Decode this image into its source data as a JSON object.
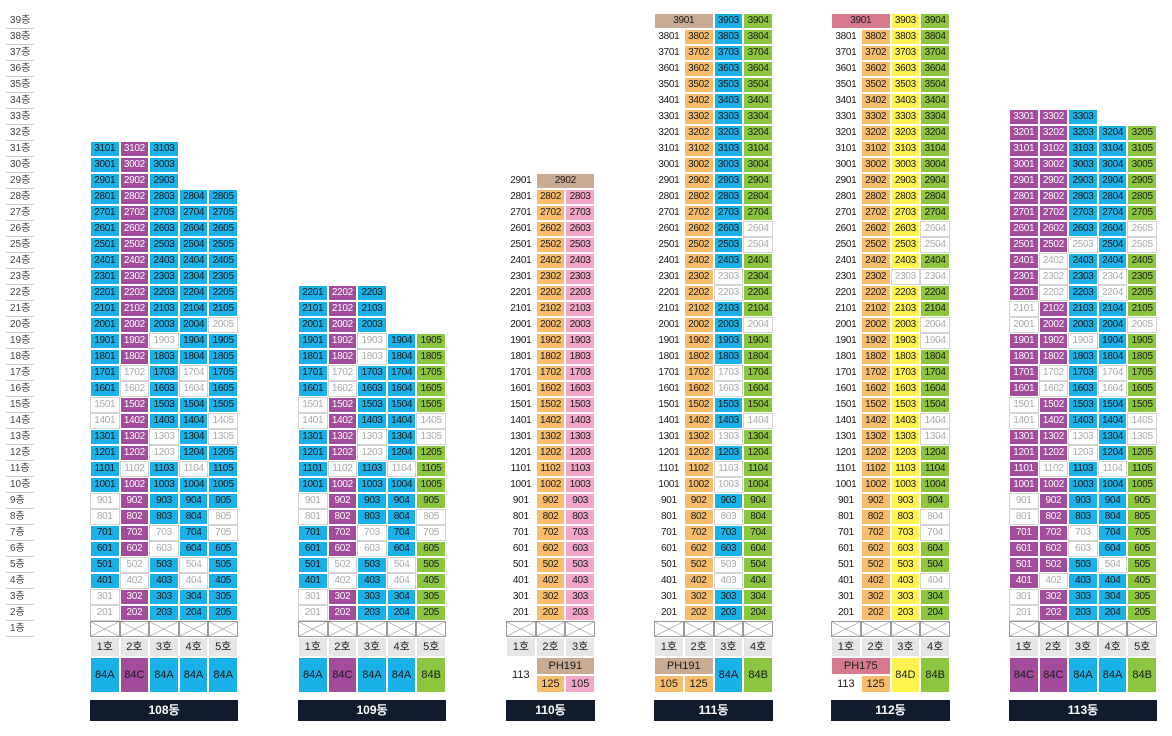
{
  "floor_labels": [
    "1층",
    "2층",
    "3층",
    "4층",
    "5층",
    "6층",
    "7층",
    "8층",
    "9층",
    "10층",
    "11층",
    "12층",
    "13층",
    "14층",
    "15층",
    "16층",
    "17층",
    "18층",
    "19층",
    "20층",
    "21층",
    "22층",
    "23층",
    "24층",
    "25층",
    "26층",
    "27층",
    "28층",
    "29층",
    "30층",
    "31층",
    "32층",
    "33층",
    "34층",
    "35층",
    "36층",
    "37층",
    "38층",
    "39층"
  ],
  "colors": {
    "blue": "#19b1e8",
    "purple": "#a24c9b",
    "pink": "#f2a6c8",
    "orange": "#f7bd6c",
    "green": "#8cc63f",
    "yellow": "#fff44f",
    "lavender": "#b9a5d3",
    "tan": "#c9ab93",
    "rose": "#d77a8f",
    "empty": "#ffffff",
    "name_bar": "#101c2c"
  },
  "buildings": [
    {
      "name": "108동",
      "line_labels": [
        "1호",
        "2호",
        "3호",
        "4호",
        "5호"
      ],
      "types": [
        {
          "label": "84A",
          "color": "blue"
        },
        {
          "label": "84C",
          "color": "purple"
        },
        {
          "label": "84A",
          "color": "blue"
        },
        {
          "label": "84A",
          "color": "blue"
        },
        {
          "label": "84A",
          "color": "blue"
        }
      ],
      "line_colors": [
        "blue",
        "purple",
        "blue",
        "blue",
        "blue"
      ],
      "line_tops": [
        31,
        31,
        31,
        28,
        28
      ],
      "empty_units": [
        "301",
        "201",
        "502",
        "504",
        "402",
        "404",
        "603",
        "703",
        "705",
        "801",
        "805",
        "901",
        "1102",
        "1104",
        "1203",
        "1303",
        "1305",
        "1401",
        "1405",
        "1501",
        "1602",
        "1604",
        "1702",
        "1704",
        "1903",
        "2005"
      ],
      "shared": []
    },
    {
      "name": "109동",
      "line_labels": [
        "1호",
        "2호",
        "3호",
        "4호",
        "5호"
      ],
      "types": [
        {
          "label": "84A",
          "color": "blue"
        },
        {
          "label": "84C",
          "color": "purple"
        },
        {
          "label": "84A",
          "color": "blue"
        },
        {
          "label": "84A",
          "color": "blue"
        },
        {
          "label": "84B",
          "color": "green"
        }
      ],
      "line_colors": [
        "blue",
        "purple",
        "blue",
        "blue",
        "green"
      ],
      "line_tops": [
        22,
        22,
        22,
        19,
        19
      ],
      "empty_units": [
        "201",
        "301",
        "402",
        "404",
        "502",
        "504",
        "603",
        "703",
        "705",
        "801",
        "805",
        "901",
        "1102",
        "1104",
        "1203",
        "1303",
        "1305",
        "1401",
        "1405",
        "1501",
        "1602",
        "1702",
        "1803",
        "1903"
      ],
      "shared": []
    },
    {
      "name": "110동",
      "line_labels": [
        "1호",
        "2호",
        "3호"
      ],
      "types": [
        {
          "label": "113",
          "color": "lavender",
          "rows": 2
        },
        {
          "label": "PH191",
          "color": "tan",
          "span": 2
        },
        {
          "label": "125",
          "color": "orange"
        },
        {
          "label": "105",
          "color": "pink"
        }
      ],
      "line_colors": [
        "lavender",
        "orange",
        "pink"
      ],
      "line_tops": [
        29,
        28,
        28
      ],
      "empty_units": [],
      "shared": [
        {
          "label": "2902",
          "floor": 29,
          "start": 1,
          "span": 2,
          "color": "tan"
        }
      ]
    },
    {
      "name": "111동",
      "line_labels": [
        "1호",
        "2호",
        "3호",
        "4호"
      ],
      "types": [
        {
          "label": "PH191",
          "color": "tan",
          "span": 2
        },
        {
          "label": "84A",
          "color": "blue",
          "rows": 2
        },
        {
          "label": "84B",
          "color": "green",
          "rows": 2
        },
        {
          "label": "105",
          "color": "orange"
        },
        {
          "label": "125",
          "color": "orange"
        }
      ],
      "line_colors": [
        "lavender",
        "orange",
        "blue",
        "green"
      ],
      "line_tops": [
        38,
        38,
        39,
        39
      ],
      "empty_units": [
        "403",
        "503",
        "803",
        "1003",
        "1103",
        "1303",
        "1404",
        "1603",
        "1703",
        "2004",
        "2203",
        "2303",
        "2504",
        "2604"
      ],
      "shared": [
        {
          "label": "3901",
          "floor": 39,
          "start": 0,
          "span": 2,
          "color": "tan"
        }
      ]
    },
    {
      "name": "112동",
      "line_labels": [
        "1호",
        "2호",
        "3호",
        "4호"
      ],
      "types": [
        {
          "label": "PH175",
          "color": "rose",
          "span": 2
        },
        {
          "label": "84D",
          "color": "yellow",
          "rows": 2
        },
        {
          "label": "84B",
          "color": "green",
          "rows": 2
        },
        {
          "label": "113",
          "color": "lavender"
        },
        {
          "label": "125",
          "color": "orange"
        }
      ],
      "line_colors": [
        "lavender",
        "orange",
        "yellow",
        "green"
      ],
      "line_tops": [
        38,
        38,
        39,
        39
      ],
      "empty_units": [
        "404",
        "704",
        "804",
        "1304",
        "1404",
        "1904",
        "2004",
        "2303",
        "2304",
        "2504",
        "2604"
      ],
      "shared": [
        {
          "label": "3901",
          "floor": 39,
          "start": 0,
          "span": 2,
          "color": "rose"
        }
      ]
    },
    {
      "name": "113동",
      "line_labels": [
        "1호",
        "2호",
        "3호",
        "4호",
        "5호"
      ],
      "types": [
        {
          "label": "84C",
          "color": "purple"
        },
        {
          "label": "84C",
          "color": "purple"
        },
        {
          "label": "84A",
          "color": "blue"
        },
        {
          "label": "84A",
          "color": "blue"
        },
        {
          "label": "84B",
          "color": "green"
        }
      ],
      "line_colors": [
        "purple",
        "purple",
        "blue",
        "blue",
        "green"
      ],
      "line_tops": [
        33,
        33,
        33,
        32,
        32
      ],
      "empty_units": [
        "201",
        "301",
        "402",
        "504",
        "603",
        "703",
        "801",
        "901",
        "1102",
        "1104",
        "1203",
        "1303",
        "1305",
        "1401",
        "1405",
        "1501",
        "1602",
        "1604",
        "1702",
        "1704",
        "1903",
        "2001",
        "2005",
        "2101",
        "2202",
        "2204",
        "2302",
        "2304",
        "2402",
        "2503",
        "2505",
        "2605"
      ],
      "shared": []
    }
  ]
}
